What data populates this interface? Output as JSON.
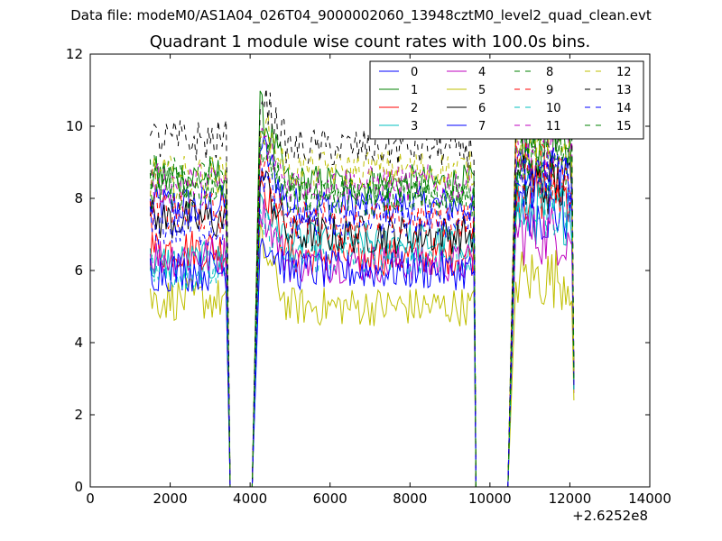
{
  "figure": {
    "suptitle": "Data file: modeM0/AS1A04_026T04_9000002060_13948cztM0_level2_quad_clean.evt",
    "title": "Quadrant 1 module wise count rates with 100.0s bins.",
    "offset_label": "+2.6252e8"
  },
  "chart_data": {
    "type": "line",
    "title": "Quadrant 1 module wise count rates with 100.0s bins.",
    "xlabel": "",
    "ylabel": "",
    "x_offset": 262520000,
    "xlim": [
      0,
      14000
    ],
    "ylim": [
      0,
      12
    ],
    "xticks": [
      0,
      2000,
      4000,
      6000,
      8000,
      10000,
      12000,
      14000
    ],
    "yticks": [
      0,
      2,
      4,
      6,
      8,
      10,
      12
    ],
    "xtick_labels": [
      "0",
      "2000",
      "4000",
      "6000",
      "8000",
      "10000",
      "12000",
      "14000"
    ],
    "ytick_labels": [
      "0",
      "2",
      "4",
      "6",
      "8",
      "10",
      "12"
    ],
    "grid": false,
    "legend_placement": "top-right",
    "legend_columns": 4,
    "segments": [
      {
        "x_start": 1500,
        "x_end": 3400,
        "step": 50
      },
      {
        "x_start": 3500,
        "x_end": 4050,
        "value": 0
      },
      {
        "x_start": 4250,
        "x_end": 9600,
        "step": 50
      },
      {
        "x_start": 9650,
        "x_end": 10450,
        "value": 0
      },
      {
        "x_start": 10650,
        "x_end": 12100,
        "step": 50
      }
    ],
    "series": [
      {
        "name": "0",
        "color": "#0000ff",
        "dash": "solid",
        "levels": [
          7.8,
          9.6,
          7.8,
          7.6
        ],
        "end_drop": 2.8
      },
      {
        "name": "1",
        "color": "#008000",
        "dash": "solid",
        "levels": [
          8.6,
          10.5,
          8.4,
          9.4
        ],
        "end_drop": 3.0
      },
      {
        "name": "2",
        "color": "#ff0000",
        "dash": "solid",
        "levels": [
          6.6,
          8.7,
          6.4,
          8.2
        ],
        "end_drop": 2.9
      },
      {
        "name": "3",
        "color": "#00bfbf",
        "dash": "solid",
        "levels": [
          6.2,
          8.0,
          6.8,
          7.6
        ],
        "end_drop": 2.7
      },
      {
        "name": "4",
        "color": "#bf00bf",
        "dash": "solid",
        "levels": [
          6.4,
          7.8,
          6.2,
          7.0
        ],
        "end_drop": 2.6
      },
      {
        "name": "5",
        "color": "#bfbf00",
        "dash": "solid",
        "levels": [
          5.2,
          6.8,
          5.0,
          5.8
        ],
        "end_drop": 2.4
      },
      {
        "name": "6",
        "color": "#000000",
        "dash": "solid",
        "levels": [
          7.4,
          8.8,
          7.0,
          8.4
        ],
        "end_drop": 3.0
      },
      {
        "name": "7",
        "color": "#0000ff",
        "dash": "solid",
        "levels": [
          6.0,
          7.0,
          6.0,
          8.6
        ],
        "end_drop": 2.7
      },
      {
        "name": "8",
        "color": "#008000",
        "dash": "dashed",
        "levels": [
          8.6,
          9.4,
          8.2,
          9.0
        ],
        "end_drop": 2.9
      },
      {
        "name": "9",
        "color": "#ff0000",
        "dash": "dashed",
        "levels": [
          7.6,
          9.0,
          7.4,
          8.8
        ],
        "end_drop": 3.0
      },
      {
        "name": "10",
        "color": "#00bfbf",
        "dash": "dashed",
        "levels": [
          6.0,
          7.4,
          6.4,
          7.8
        ],
        "end_drop": 2.7
      },
      {
        "name": "11",
        "color": "#bf00bf",
        "dash": "dashed",
        "levels": [
          8.4,
          9.8,
          8.4,
          9.4
        ],
        "end_drop": 3.1
      },
      {
        "name": "12",
        "color": "#bfbf00",
        "dash": "dashed",
        "levels": [
          8.6,
          10.2,
          8.8,
          9.8
        ],
        "end_drop": 3.0
      },
      {
        "name": "13",
        "color": "#000000",
        "dash": "dashed",
        "levels": [
          9.6,
          11.0,
          9.4,
          10.4
        ],
        "end_drop": 3.2
      },
      {
        "name": "14",
        "color": "#0000ff",
        "dash": "dashed",
        "levels": [
          7.2,
          8.8,
          7.4,
          8.6
        ],
        "end_drop": 2.9
      },
      {
        "name": "15",
        "color": "#008000",
        "dash": "dashed",
        "levels": [
          8.2,
          9.6,
          8.0,
          9.2
        ],
        "end_drop": 3.0
      }
    ]
  }
}
